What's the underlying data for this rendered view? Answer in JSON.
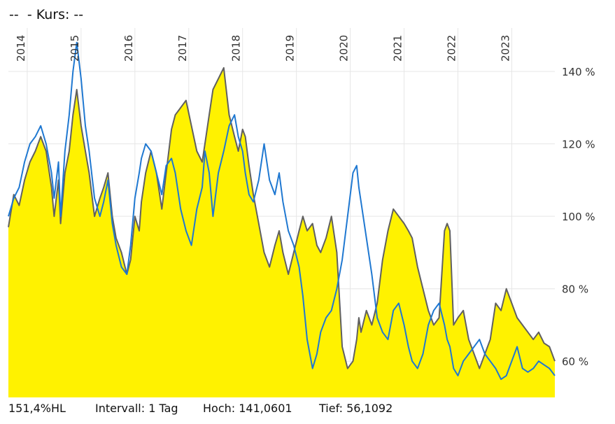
{
  "header": {
    "name": "--",
    "kurs_label": "- Kurs: --"
  },
  "footer": {
    "range_label": "151,4%HL",
    "interval": "Intervall: 1 Tag",
    "high": "Hoch: 141,0601",
    "low": "Tief: 56,1092"
  },
  "chart_data": {
    "type": "area",
    "title": "",
    "xlabel": "",
    "ylabel": "",
    "x_tick_labels": [
      "2014",
      "2015",
      "2016",
      "2017",
      "2018",
      "2019",
      "2020",
      "2021",
      "2022",
      "2023"
    ],
    "y_tick_labels": [
      "140 %",
      "120 %",
      "100 %",
      "80 %",
      "60 %"
    ],
    "y_ticks": [
      140,
      120,
      100,
      80,
      60
    ],
    "xlim": [
      2013.65,
      2023.8
    ],
    "ylim": [
      50,
      152
    ],
    "grid": true,
    "colors": {
      "area_fill": "#fff200",
      "area_line": "#606060",
      "compare_line": "#1f78d1",
      "grid": "#e6e6e6"
    },
    "series": [
      {
        "style": "area",
        "x": [
          2013.65,
          2013.75,
          2013.85,
          2013.95,
          2014.05,
          2014.15,
          2014.25,
          2014.35,
          2014.45,
          2014.5,
          2014.58,
          2014.62,
          2014.7,
          2014.78,
          2014.85,
          2014.92,
          2015.0,
          2015.08,
          2015.15,
          2015.25,
          2015.35,
          2015.42,
          2015.5,
          2015.58,
          2015.65,
          2015.75,
          2015.85,
          2015.92,
          2016.0,
          2016.08,
          2016.12,
          2016.2,
          2016.3,
          2016.4,
          2016.5,
          2016.58,
          2016.68,
          2016.75,
          2016.85,
          2016.95,
          2017.05,
          2017.15,
          2017.25,
          2017.3,
          2017.38,
          2017.45,
          2017.55,
          2017.65,
          2017.75,
          2017.85,
          2017.92,
          2018.0,
          2018.05,
          2018.12,
          2018.2,
          2018.3,
          2018.4,
          2018.5,
          2018.6,
          2018.68,
          2018.75,
          2018.85,
          2018.95,
          2019.05,
          2019.12,
          2019.2,
          2019.3,
          2019.38,
          2019.45,
          2019.55,
          2019.65,
          2019.75,
          2019.85,
          2019.95,
          2020.05,
          2020.12,
          2020.16,
          2020.2,
          2020.3,
          2020.4,
          2020.5,
          2020.6,
          2020.7,
          2020.8,
          2020.9,
          2021.0,
          2021.08,
          2021.15,
          2021.25,
          2021.35,
          2021.45,
          2021.55,
          2021.65,
          2021.75,
          2021.8,
          2021.85,
          2021.92,
          2022.0,
          2022.1,
          2022.2,
          2022.3,
          2022.4,
          2022.5,
          2022.6,
          2022.7,
          2022.8,
          2022.9,
          2023.0,
          2023.1,
          2023.2,
          2023.3,
          2023.4,
          2023.5,
          2023.6,
          2023.7,
          2023.75,
          2023.8
        ],
        "y": [
          97,
          106,
          103,
          110,
          115,
          118,
          122,
          118,
          108,
          100,
          110,
          98,
          112,
          118,
          128,
          135,
          125,
          118,
          112,
          100,
          105,
          108,
          112,
          100,
          94,
          90,
          84,
          88,
          100,
          96,
          104,
          112,
          118,
          112,
          102,
          112,
          124,
          128,
          130,
          132,
          125,
          118,
          115,
          120,
          128,
          135,
          138,
          141,
          128,
          122,
          118,
          124,
          122,
          114,
          106,
          98,
          90,
          86,
          92,
          96,
          90,
          84,
          90,
          96,
          100,
          96,
          98,
          92,
          90,
          94,
          100,
          90,
          64,
          58,
          60,
          66,
          72,
          68,
          74,
          70,
          76,
          88,
          96,
          102,
          100,
          98,
          96,
          94,
          86,
          80,
          74,
          70,
          72,
          96,
          98,
          96,
          70,
          72,
          74,
          66,
          62,
          58,
          62,
          66,
          76,
          74,
          80,
          76,
          72,
          70,
          68,
          66,
          68,
          65,
          64,
          62,
          60
        ]
      },
      {
        "style": "line",
        "x": [
          2013.65,
          2013.75,
          2013.85,
          2013.95,
          2014.05,
          2014.15,
          2014.25,
          2014.35,
          2014.45,
          2014.5,
          2014.58,
          2014.62,
          2014.7,
          2014.78,
          2014.85,
          2014.92,
          2015.0,
          2015.08,
          2015.15,
          2015.25,
          2015.35,
          2015.42,
          2015.5,
          2015.58,
          2015.65,
          2015.75,
          2015.85,
          2015.92,
          2016.0,
          2016.08,
          2016.12,
          2016.2,
          2016.3,
          2016.4,
          2016.5,
          2016.58,
          2016.68,
          2016.75,
          2016.85,
          2016.95,
          2017.05,
          2017.15,
          2017.25,
          2017.3,
          2017.38,
          2017.45,
          2017.55,
          2017.65,
          2017.75,
          2017.85,
          2017.92,
          2018.0,
          2018.05,
          2018.12,
          2018.2,
          2018.3,
          2018.4,
          2018.5,
          2018.6,
          2018.68,
          2018.75,
          2018.85,
          2018.95,
          2019.05,
          2019.12,
          2019.2,
          2019.3,
          2019.38,
          2019.45,
          2019.55,
          2019.65,
          2019.75,
          2019.85,
          2019.95,
          2020.05,
          2020.12,
          2020.16,
          2020.2,
          2020.3,
          2020.4,
          2020.5,
          2020.6,
          2020.7,
          2020.8,
          2020.9,
          2021.0,
          2021.08,
          2021.15,
          2021.25,
          2021.35,
          2021.45,
          2021.55,
          2021.65,
          2021.75,
          2021.8,
          2021.85,
          2021.92,
          2022.0,
          2022.1,
          2022.2,
          2022.3,
          2022.4,
          2022.5,
          2022.6,
          2022.7,
          2022.8,
          2022.9,
          2023.0,
          2023.1,
          2023.2,
          2023.3,
          2023.4,
          2023.5,
          2023.6,
          2023.7,
          2023.75,
          2023.8
        ],
        "y": [
          100,
          105,
          108,
          115,
          120,
          122,
          125,
          120,
          112,
          105,
          115,
          100,
          118,
          128,
          140,
          148,
          138,
          125,
          118,
          105,
          100,
          104,
          110,
          98,
          92,
          86,
          84,
          92,
          105,
          112,
          116,
          120,
          118,
          112,
          106,
          114,
          116,
          112,
          102,
          96,
          92,
          102,
          108,
          118,
          112,
          100,
          112,
          118,
          125,
          128,
          122,
          118,
          112,
          106,
          104,
          110,
          120,
          110,
          106,
          112,
          104,
          96,
          92,
          86,
          78,
          66,
          58,
          62,
          68,
          72,
          74,
          80,
          88,
          100,
          112,
          114,
          108,
          104,
          94,
          84,
          72,
          68,
          66,
          74,
          76,
          70,
          64,
          60,
          58,
          62,
          70,
          74,
          76,
          70,
          66,
          64,
          58,
          56,
          60,
          62,
          64,
          66,
          62,
          60,
          58,
          55,
          56,
          60,
          64,
          58,
          57,
          58,
          60,
          59,
          58,
          57,
          56
        ]
      }
    ]
  }
}
